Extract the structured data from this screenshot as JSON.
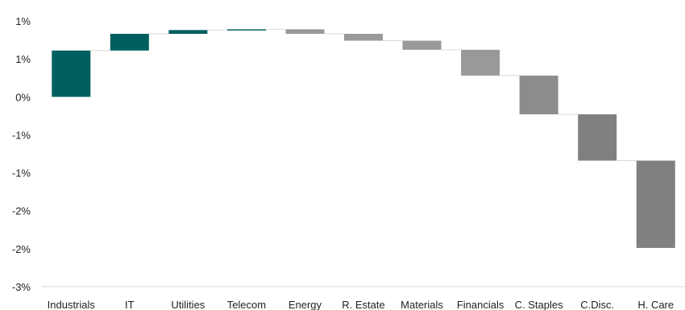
{
  "chart_data": {
    "type": "waterfall",
    "categories": [
      "Industrials",
      "IT",
      "Utilities",
      "Telecom",
      "Energy",
      "R. Estate",
      "Materials",
      "Financials",
      "C. Staples",
      "C.Disc.",
      "H. Care"
    ],
    "values": [
      0.61,
      0.22,
      0.05,
      0.01,
      -0.06,
      -0.09,
      -0.12,
      -0.34,
      -0.51,
      -0.61,
      -1.15
    ],
    "colors": [
      "#005f5f",
      "#005f5f",
      "#005f5f",
      "#005f5f",
      "#999999",
      "#999999",
      "#999999",
      "#999999",
      "#8c8c8c",
      "#808080",
      "#808080"
    ],
    "yticks": [
      1.0,
      0.5,
      0.0,
      -0.5,
      -1.0,
      -1.5,
      -2.0,
      -2.5
    ],
    "ytick_labels": [
      "1%",
      "1%",
      "0%",
      "-1%",
      "-1%",
      "-2%",
      "-2%",
      "-3%"
    ],
    "ylim": [
      -2.5,
      1.0
    ],
    "grid": false,
    "title": "",
    "xlabel": "",
    "ylabel": ""
  }
}
